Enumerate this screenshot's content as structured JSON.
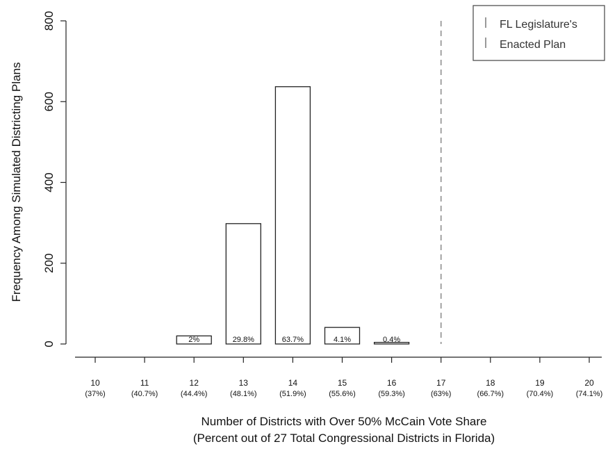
{
  "chart_data": {
    "type": "bar",
    "ylabel": "Frequency Among Simulated Districting Plans",
    "xlabel_line1": "Number of Districts with Over 50% McCain Vote Share",
    "xlabel_line2": "(Percent out of 27 Total Congressional Districts in Florida)",
    "ylim": [
      0,
      800
    ],
    "yticks": [
      "0",
      "200",
      "400",
      "600",
      "800"
    ],
    "categories": [
      {
        "num": "10",
        "pct": "(37%)"
      },
      {
        "num": "11",
        "pct": "(40.7%)"
      },
      {
        "num": "12",
        "pct": "(44.4%)"
      },
      {
        "num": "13",
        "pct": "(48.1%)"
      },
      {
        "num": "14",
        "pct": "(51.9%)"
      },
      {
        "num": "15",
        "pct": "(55.6%)"
      },
      {
        "num": "16",
        "pct": "(59.3%)"
      },
      {
        "num": "17",
        "pct": "(63%)"
      },
      {
        "num": "18",
        "pct": "(66.7%)"
      },
      {
        "num": "19",
        "pct": "(70.4%)"
      },
      {
        "num": "20",
        "pct": "(74.1%)"
      }
    ],
    "bars": [
      {
        "x": 12,
        "value": 20,
        "label": "2%"
      },
      {
        "x": 13,
        "value": 298,
        "label": "29.8%"
      },
      {
        "x": 14,
        "value": 637,
        "label": "63.7%"
      },
      {
        "x": 15,
        "value": 41,
        "label": "4.1%"
      },
      {
        "x": 16,
        "value": 4,
        "label": "0.4%"
      }
    ],
    "enacted_plan_x": 17,
    "legend": {
      "placement": "top-right",
      "line1": "FL Legislature's",
      "line2": "Enacted Plan"
    },
    "colors": {
      "bar_fill": "#ffffff",
      "bar_stroke": "#222222",
      "enacted_line": "#888888"
    }
  }
}
